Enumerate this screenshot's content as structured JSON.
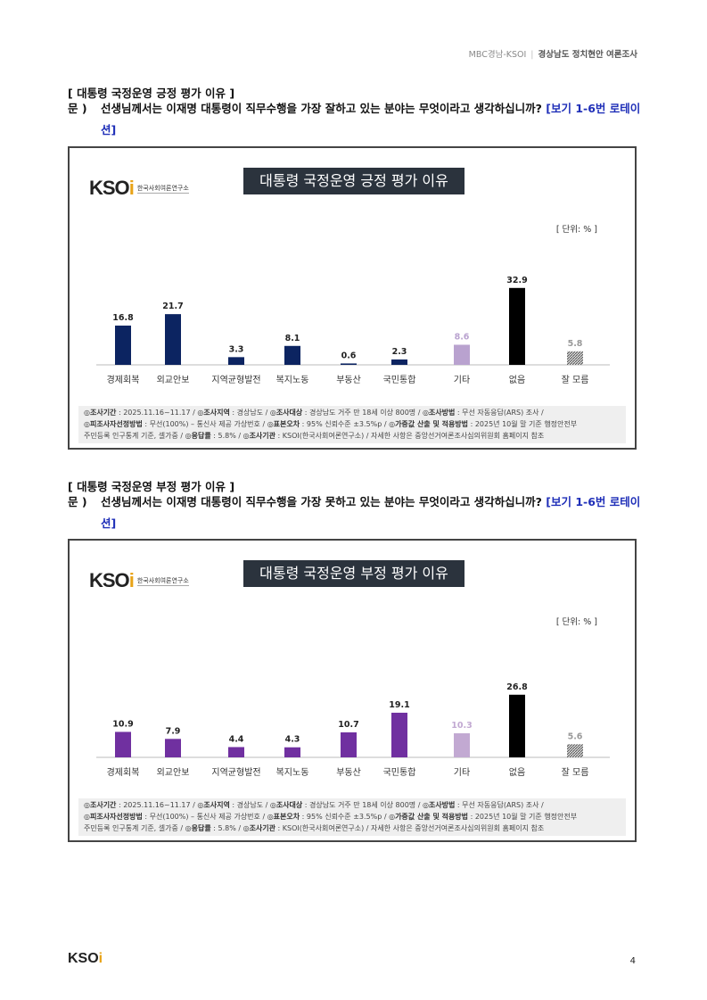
{
  "header": {
    "left": "MBC경남-KSOI",
    "right": "경상남도 정치현안 여론조사"
  },
  "sections": [
    {
      "title": "[ 대통령 국정운영 긍정 평가 이유 ]",
      "q_label": "문 )",
      "question": "선생님께서는 이재명 대통령이 직무수행을 가장 잘하고 있는 분야는 무엇이라고 생각하십니까?",
      "rotation": "[보기 1-6번 로테이션]"
    },
    {
      "title": "[ 대통령 국정운영 부정 평가 이유 ]",
      "q_label": "문 )",
      "question": "선생님께서는 이재명 대통령이 직무수행을 가장 못하고 있는 분야는 무엇이라고 생각하십니까?",
      "rotation": "[보기 1-6번 로테이션]"
    }
  ],
  "logo": {
    "text": "KSOI",
    "sub": "한국사회여론연구소"
  },
  "footnote": {
    "l1": [
      [
        "◎조사기간",
        " : 2025.11.16~11.17 / "
      ],
      [
        "◎조사지역",
        " : 경상남도 / "
      ],
      [
        "◎조사대상",
        " : 경상남도 거주 만 18세 이상 800명 / "
      ],
      [
        "◎조사방법",
        " : 무선 자동응답(ARS) 조사 /"
      ]
    ],
    "l2": [
      [
        "◎피조사자선정방법",
        " : 무선(100%) – 통신사 제공 가상번호 / "
      ],
      [
        "◎표본오차",
        " : 95% 신뢰수준 ±3.5%p / "
      ],
      [
        "◎가중값 산출 및 적용방법",
        " : 2025년 10월 말 기준 행정안전부"
      ]
    ],
    "l3": [
      [
        "",
        "주민등록 인구통계 기준, 셀가중 / "
      ],
      [
        "◎응답률",
        " : 5.8% / "
      ],
      [
        "◎조사기관",
        " : KSOI(한국사회여론연구소) / 자세한 사항은 중앙선거여론조사심의위원회 홈페이지 참조"
      ]
    ]
  },
  "page_number": "4",
  "chart_data": [
    {
      "type": "bar",
      "title": "대통령 국정운영 긍정 평가 이유",
      "unit": "[ 단위: % ]",
      "categories": [
        "경제회복",
        "외교안보",
        "지역균형발전",
        "복지노동",
        "부동산",
        "국민통합",
        "기타",
        "없음",
        "잘 모름"
      ],
      "values": [
        16.8,
        21.7,
        3.3,
        8.1,
        0.6,
        2.3,
        8.6,
        32.9,
        5.8
      ],
      "colors": [
        "#0c2461",
        "#0c2461",
        "#0c2461",
        "#0c2461",
        "#0c2461",
        "#0c2461",
        "#b9a2cf",
        "#000000",
        "hatch"
      ],
      "ylim": [
        0,
        40
      ]
    },
    {
      "type": "bar",
      "title": "대통령 국정운영 부정 평가 이유",
      "unit": "[ 단위: % ]",
      "categories": [
        "경제회복",
        "외교안보",
        "지역균형발전",
        "복지노동",
        "부동산",
        "국민통합",
        "기타",
        "없음",
        "잘 모름"
      ],
      "values": [
        10.9,
        7.9,
        4.4,
        4.3,
        10.7,
        19.1,
        10.3,
        26.8,
        5.6
      ],
      "colors": [
        "#7030a0",
        "#7030a0",
        "#7030a0",
        "#7030a0",
        "#7030a0",
        "#7030a0",
        "#c2a9d2",
        "#000000",
        "hatch"
      ],
      "ylim": [
        0,
        40
      ]
    }
  ]
}
